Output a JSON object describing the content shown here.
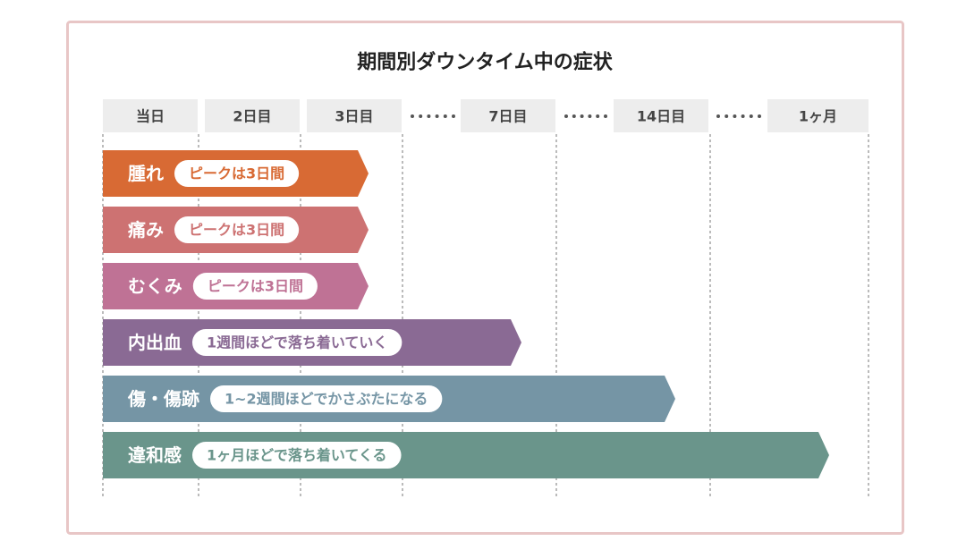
{
  "title": "期間別ダウンタイム中の症状",
  "columns": [
    "当日",
    "2日目",
    "3日目",
    "7日目",
    "14日目",
    "1ヶ月"
  ],
  "rows": [
    {
      "label": "腫れ",
      "note": "ピークは3日間"
    },
    {
      "label": "痛み",
      "note": "ピークは3日間"
    },
    {
      "label": "むくみ",
      "note": "ピークは3日間"
    },
    {
      "label": "内出血",
      "note": "1週間ほどで落ち着いていく"
    },
    {
      "label": "傷・傷跡",
      "note": "1~2週間ほどでかさぶたになる"
    },
    {
      "label": "違和感",
      "note": "1ヶ月ほどで落ち着いてくる"
    }
  ]
}
